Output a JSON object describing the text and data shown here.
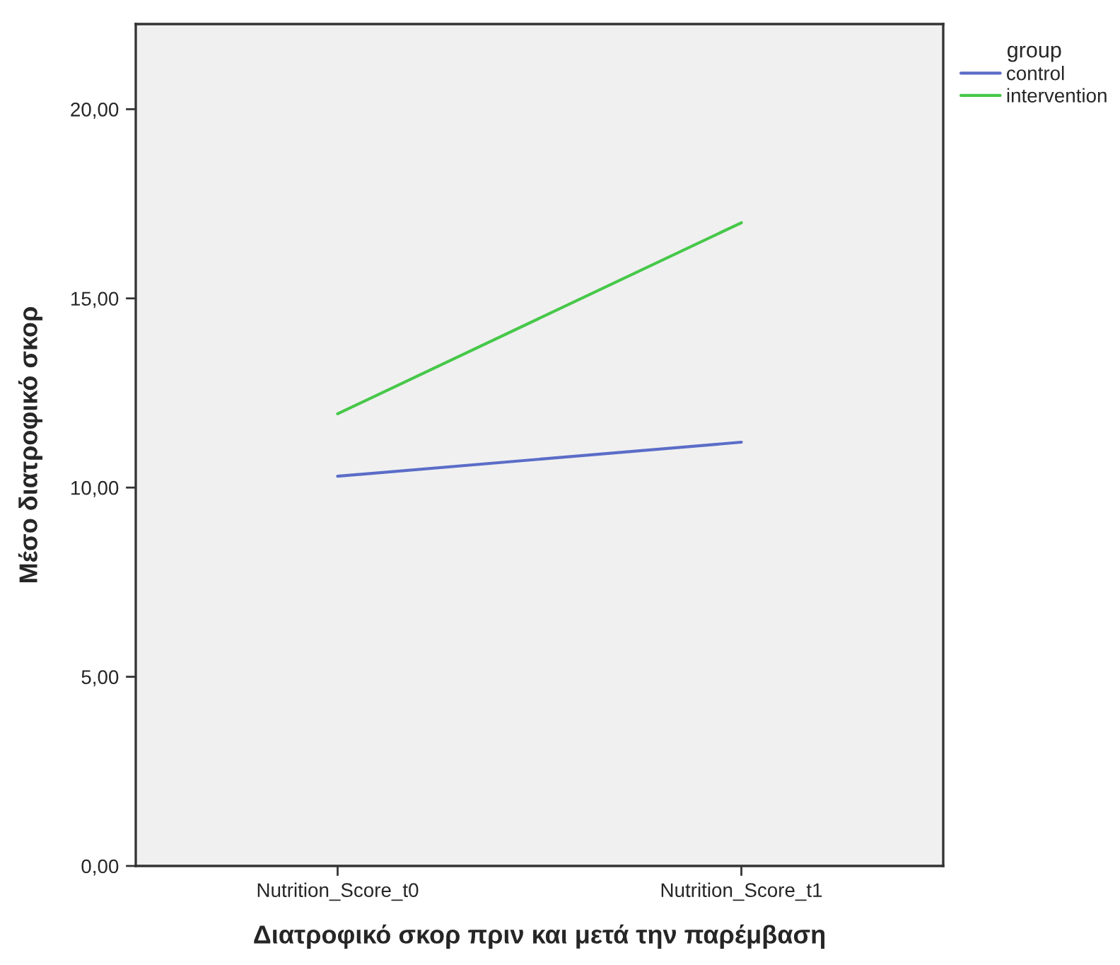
{
  "chart_data": {
    "type": "line",
    "xlabel": "Διατροφικό σκορ πριν και μετά την παρέμβαση",
    "ylabel": "Μέσο διατροφικό σκορ",
    "legend_title": "group",
    "categories": [
      "Nutrition_Score_t0",
      "Nutrition_Score_t1"
    ],
    "series": [
      {
        "name": "control",
        "color": "#5b6dc8",
        "values": [
          10.3,
          11.2
        ]
      },
      {
        "name": "intervention",
        "color": "#47c84a",
        "values": [
          11.95,
          17.0
        ]
      }
    ],
    "ylim": [
      0,
      22.25
    ],
    "yticks": [
      {
        "value": 0,
        "label": "0,00"
      },
      {
        "value": 5,
        "label": "5,00"
      },
      {
        "value": 10,
        "label": "10,00"
      },
      {
        "value": 15,
        "label": "15,00"
      },
      {
        "value": 20,
        "label": "20,00"
      }
    ],
    "grid": false,
    "legend": "top right",
    "marker": "none",
    "line_style": "solid"
  }
}
